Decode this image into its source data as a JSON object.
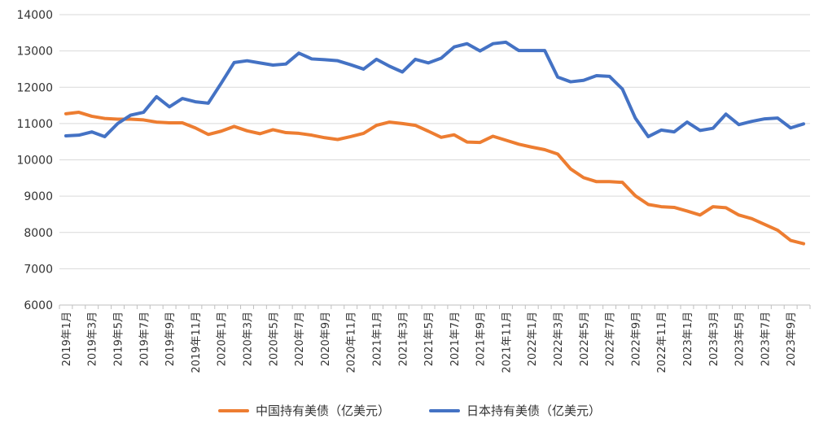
{
  "chart_data": {
    "type": "line",
    "title": "",
    "xlabel": "",
    "ylabel": "",
    "ylim": [
      6000,
      14000
    ],
    "yticks": [
      6000,
      7000,
      8000,
      9000,
      10000,
      11000,
      12000,
      13000,
      14000
    ],
    "grid": "horizontal",
    "legend_position": "bottom",
    "categories": [
      "2019年1月",
      "2019年2月",
      "2019年3月",
      "2019年4月",
      "2019年5月",
      "2019年6月",
      "2019年7月",
      "2019年8月",
      "2019年9月",
      "2019年10月",
      "2019年11月",
      "2019年12月",
      "2020年1月",
      "2020年2月",
      "2020年3月",
      "2020年4月",
      "2020年5月",
      "2020年6月",
      "2020年7月",
      "2020年8月",
      "2020年9月",
      "2020年10月",
      "2020年11月",
      "2020年12月",
      "2021年1月",
      "2021年2月",
      "2021年3月",
      "2021年4月",
      "2021年5月",
      "2021年6月",
      "2021年7月",
      "2021年8月",
      "2021年9月",
      "2021年10月",
      "2021年11月",
      "2021年12月",
      "2022年1月",
      "2022年2月",
      "2022年3月",
      "2022年4月",
      "2022年5月",
      "2022年6月",
      "2022年7月",
      "2022年8月",
      "2022年9月",
      "2022年10月",
      "2022年11月",
      "2022年12月",
      "2023年1月",
      "2023年2月",
      "2023年3月",
      "2023年4月",
      "2023年5月",
      "2023年6月",
      "2023年7月",
      "2023年8月",
      "2023年9月",
      "2023年10月"
    ],
    "tick_labels": [
      "2019年1月",
      "2019年3月",
      "2019年5月",
      "2019年7月",
      "2019年9月",
      "2019年11月",
      "2020年1月",
      "2020年3月",
      "2020年5月",
      "2020年7月",
      "2020年9月",
      "2020年11月",
      "2021年1月",
      "2021年3月",
      "2021年5月",
      "2021年7月",
      "2021年9月",
      "2021年11月",
      "2022年1月",
      "2022年3月",
      "2022年5月",
      "2022年7月",
      "2022年9月",
      "2022年11月",
      "2023年1月",
      "2023年3月",
      "2023年5月",
      "2023年7月",
      "2023年9月"
    ],
    "series": [
      {
        "name": "中国持有美债（亿美元）",
        "color": "#ED7D31",
        "values": [
          11270,
          11310,
          11200,
          11140,
          11120,
          11120,
          11100,
          11040,
          11020,
          11020,
          10880,
          10700,
          10790,
          10920,
          10800,
          10720,
          10830,
          10750,
          10730,
          10680,
          10610,
          10560,
          10640,
          10730,
          10950,
          11040,
          11000,
          10950,
          10790,
          10620,
          10690,
          10490,
          10480,
          10650,
          10540,
          10430,
          10350,
          10280,
          10160,
          9750,
          9510,
          9400,
          9400,
          9380,
          9010,
          8770,
          8710,
          8690,
          8590,
          8480,
          8710,
          8680,
          8480,
          8380,
          8220,
          8060,
          7780,
          7690
        ]
      },
      {
        "name": "日本持有美债（亿美元）",
        "color": "#4472C4",
        "values": [
          10660,
          10680,
          10770,
          10640,
          11000,
          11230,
          11310,
          11740,
          11460,
          11690,
          11600,
          11560,
          12110,
          12680,
          12730,
          12670,
          12610,
          12640,
          12940,
          12780,
          12760,
          12730,
          12620,
          12500,
          12770,
          12580,
          12420,
          12770,
          12670,
          12800,
          13110,
          13200,
          13000,
          13200,
          13240,
          13010,
          13010,
          13010,
          12280,
          12150,
          12190,
          12320,
          12300,
          11950,
          11150,
          10640,
          10820,
          10770,
          11040,
          10810,
          10870,
          11260,
          10970,
          11060,
          11130,
          11150,
          10880,
          10990
        ]
      }
    ]
  }
}
